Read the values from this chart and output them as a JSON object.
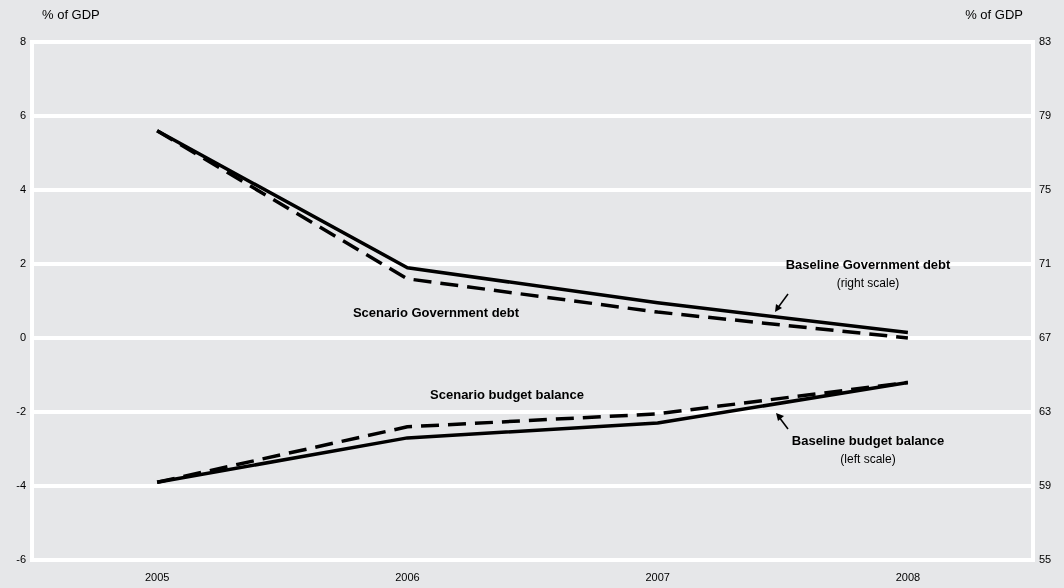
{
  "chart_data": {
    "type": "line",
    "categories": [
      "2005",
      "2006",
      "2007",
      "2008"
    ],
    "ylabel": "% of GDP",
    "y2label": "% of GDP",
    "ylim": [
      -6,
      8
    ],
    "yticks": [
      -6,
      -4,
      -2,
      0,
      2,
      4,
      6,
      8
    ],
    "y2lim": [
      55,
      83
    ],
    "y2ticks": [
      55,
      59,
      63,
      67,
      71,
      75,
      79,
      83
    ],
    "grid": "y",
    "legend": false,
    "marker": "none",
    "series": [
      {
        "color": "#000000",
        "axis": "y2",
        "line_style": "solid",
        "values": [
          78.2,
          70.8,
          68.9,
          67.3
        ]
      },
      {
        "name": "Scenario Government debt",
        "color": "#000000",
        "axis": "y2",
        "line_style": "dashed",
        "values": [
          78.2,
          70.2,
          68.4,
          67.0
        ]
      },
      {
        "color": "#000000",
        "axis": "y",
        "line_style": "solid",
        "values": [
          -3.9,
          -2.7,
          -2.3,
          -1.2
        ]
      },
      {
        "name": "Scenario budget balance",
        "color": "#000000",
        "axis": "y",
        "line_style": "dashed",
        "values": [
          -3.9,
          -2.4,
          -2.05,
          -1.2
        ]
      }
    ],
    "annotations": [
      "Baseline Government debt",
      "(right scale)",
      "Baseline budget balance",
      "(left scale)"
    ]
  }
}
